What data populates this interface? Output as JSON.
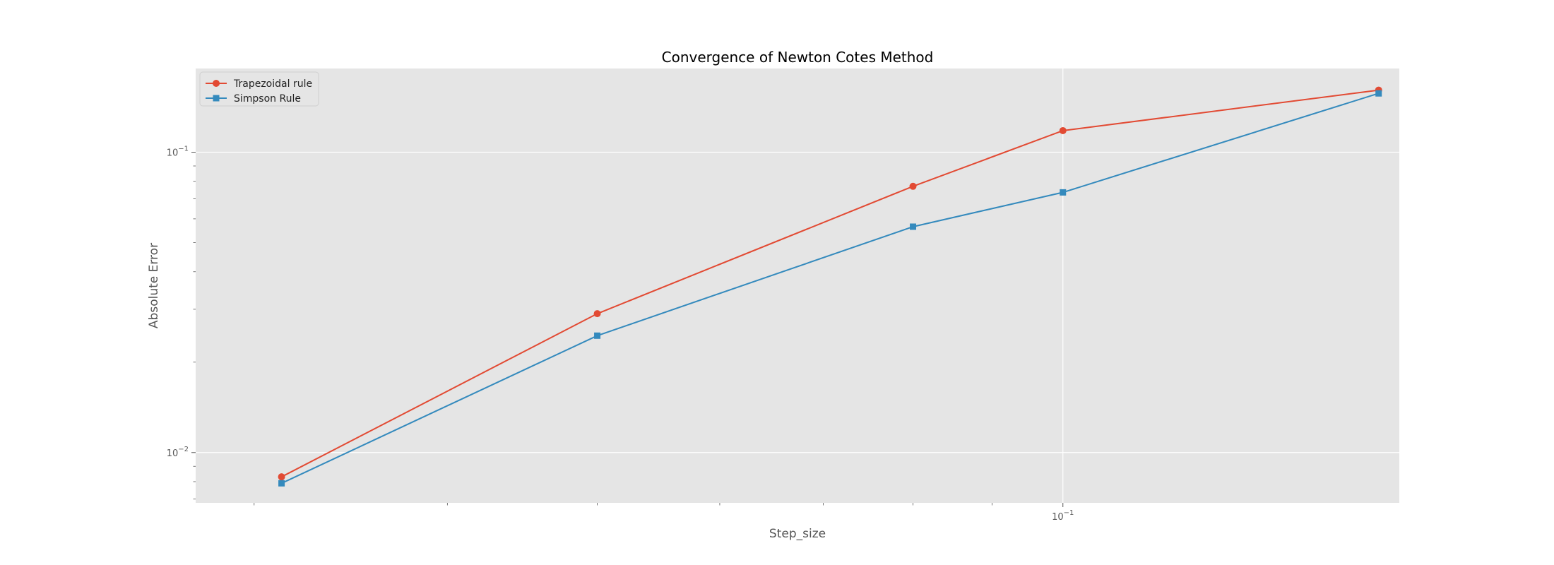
{
  "chart_data": {
    "type": "line",
    "title": "Convergence of Newton Cotes Method",
    "xlabel": "Step_size",
    "ylabel": "Absolute Error",
    "xscale": "log",
    "yscale": "log",
    "xlim": [
      0.0275,
      0.165
    ],
    "ylim": [
      0.0068,
      0.19
    ],
    "xticks": [
      {
        "value": 0.1,
        "label": "10^-1"
      }
    ],
    "yticks": [
      {
        "value": 0.01,
        "label": "10^-2"
      },
      {
        "value": 0.1,
        "label": "10^-1"
      }
    ],
    "grid": true,
    "legend": "top-left",
    "colors": {
      "plot_bg": "#e5e5e5",
      "grid": "#ffffff",
      "frame": "#ffffff"
    },
    "series": [
      {
        "name": "Trapezoidal rule",
        "color": "#e24a33",
        "marker": "circle",
        "x": [
          0.03125,
          0.05,
          0.08,
          0.1,
          0.16
        ],
        "y": [
          0.0083,
          0.029,
          0.077,
          0.118,
          0.161
        ]
      },
      {
        "name": "Simpson Rule",
        "color": "#348abd",
        "marker": "square",
        "x": [
          0.03125,
          0.05,
          0.08,
          0.1,
          0.16
        ],
        "y": [
          0.0079,
          0.0245,
          0.0565,
          0.0735,
          0.157
        ]
      }
    ]
  }
}
